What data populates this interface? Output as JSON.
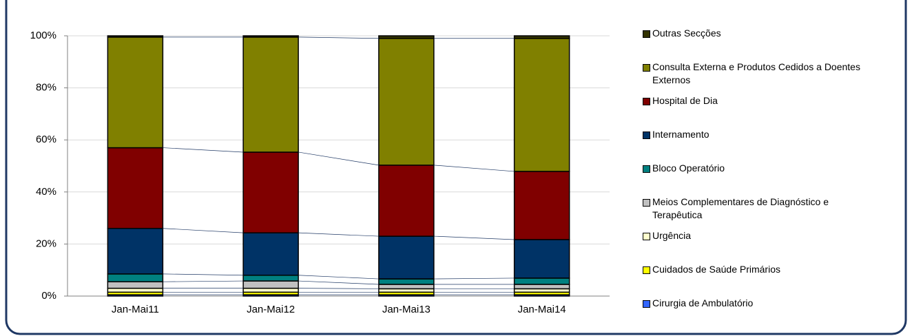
{
  "chart_data": {
    "type": "stacked_bar_100",
    "categories": [
      "Jan-Mai11",
      "Jan-Mai12",
      "Jan-Mai13",
      "Jan-Mai14"
    ],
    "series": [
      {
        "name": "Cirurgia de Ambulatório",
        "color": "#3366ff",
        "values": [
          0.5,
          0.5,
          0.5,
          0.5
        ]
      },
      {
        "name": "Cuidados de Saúde Primários",
        "color": "#ffff00",
        "values": [
          1,
          1,
          1,
          1
        ]
      },
      {
        "name": "Urgência",
        "color": "#ffffcc",
        "values": [
          1.5,
          1.5,
          1.3,
          1.3
        ]
      },
      {
        "name": "Meios Complementares de Diagnóstico e Terapêutica",
        "color": "#c0c0c0",
        "values": [
          2.5,
          2.8,
          1.7,
          1.7
        ]
      },
      {
        "name": "Bloco Operatório",
        "color": "#008080",
        "values": [
          3,
          2.2,
          2.1,
          2.4
        ]
      },
      {
        "name": "Internamento",
        "color": "#003366",
        "values": [
          17.5,
          16.3,
          16.4,
          14.8
        ]
      },
      {
        "name": "Hospital de Dia",
        "color": "#800000",
        "values": [
          31,
          31,
          27.3,
          26.2
        ]
      },
      {
        "name": "Consulta Externa e Produtos Cedidos a Doentes Externos",
        "color": "#808000",
        "values": [
          42.5,
          44.2,
          48.7,
          51.1
        ]
      },
      {
        "name": "Outras Secções",
        "color": "#333300",
        "values": [
          0.5,
          0.5,
          1,
          1
        ]
      }
    ],
    "ylim": [
      0,
      100
    ],
    "yticks": [
      {
        "value": 0,
        "label": "0%"
      },
      {
        "value": 20,
        "label": "20%"
      },
      {
        "value": 40,
        "label": "40%"
      },
      {
        "value": 60,
        "label": "60%"
      },
      {
        "value": 80,
        "label": "80%"
      },
      {
        "value": 100,
        "label": "100%"
      }
    ],
    "grid": true,
    "legend": "right"
  }
}
